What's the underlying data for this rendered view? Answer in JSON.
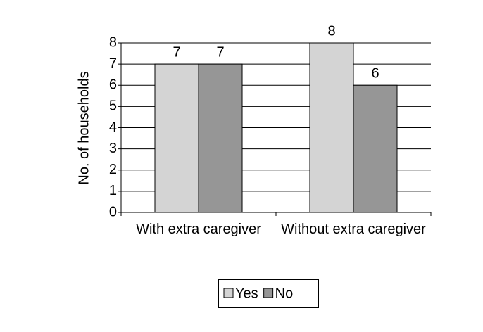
{
  "chart_data": {
    "type": "bar",
    "y_label": "No. of households",
    "categories": [
      "With extra caregiver",
      "Without extra caregiver"
    ],
    "series": [
      {
        "name": "Yes",
        "color": "#d4d4d4",
        "values": [
          7,
          8
        ]
      },
      {
        "name": "No",
        "color": "#969696",
        "values": [
          7,
          6
        ]
      }
    ],
    "ylim": [
      0,
      8
    ],
    "yticks": [
      0,
      1,
      2,
      3,
      4,
      5,
      6,
      7,
      8
    ],
    "grid": true,
    "legend": "bottom"
  }
}
